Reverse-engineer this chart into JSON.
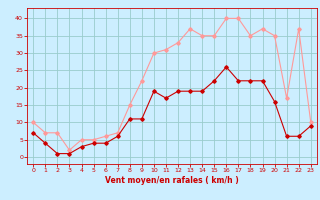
{
  "hours": [
    0,
    1,
    2,
    3,
    4,
    5,
    6,
    7,
    8,
    9,
    10,
    11,
    12,
    13,
    14,
    15,
    16,
    17,
    18,
    19,
    20,
    21,
    22,
    23
  ],
  "vent_moyen": [
    7,
    4,
    1,
    1,
    3,
    4,
    4,
    6,
    11,
    11,
    19,
    17,
    19,
    19,
    19,
    22,
    26,
    22,
    22,
    22,
    16,
    6,
    6,
    9
  ],
  "rafales": [
    10,
    7,
    7,
    2,
    5,
    5,
    6,
    7,
    15,
    22,
    30,
    31,
    33,
    37,
    35,
    35,
    40,
    40,
    35,
    37,
    35,
    17,
    37,
    10
  ],
  "bg_color": "#cceeff",
  "grid_color": "#99cccc",
  "line_color_moyen": "#cc0000",
  "line_color_rafales": "#ff9999",
  "xlabel": "Vent moyen/en rafales ( km/h )",
  "xlabel_color": "#cc0000",
  "tick_color": "#cc0000",
  "ylim": [
    -2,
    43
  ],
  "yticks": [
    0,
    5,
    10,
    15,
    20,
    25,
    30,
    35,
    40
  ],
  "xticks": [
    0,
    1,
    2,
    3,
    4,
    5,
    6,
    7,
    8,
    9,
    10,
    11,
    12,
    13,
    14,
    15,
    16,
    17,
    18,
    19,
    20,
    21,
    22,
    23
  ]
}
